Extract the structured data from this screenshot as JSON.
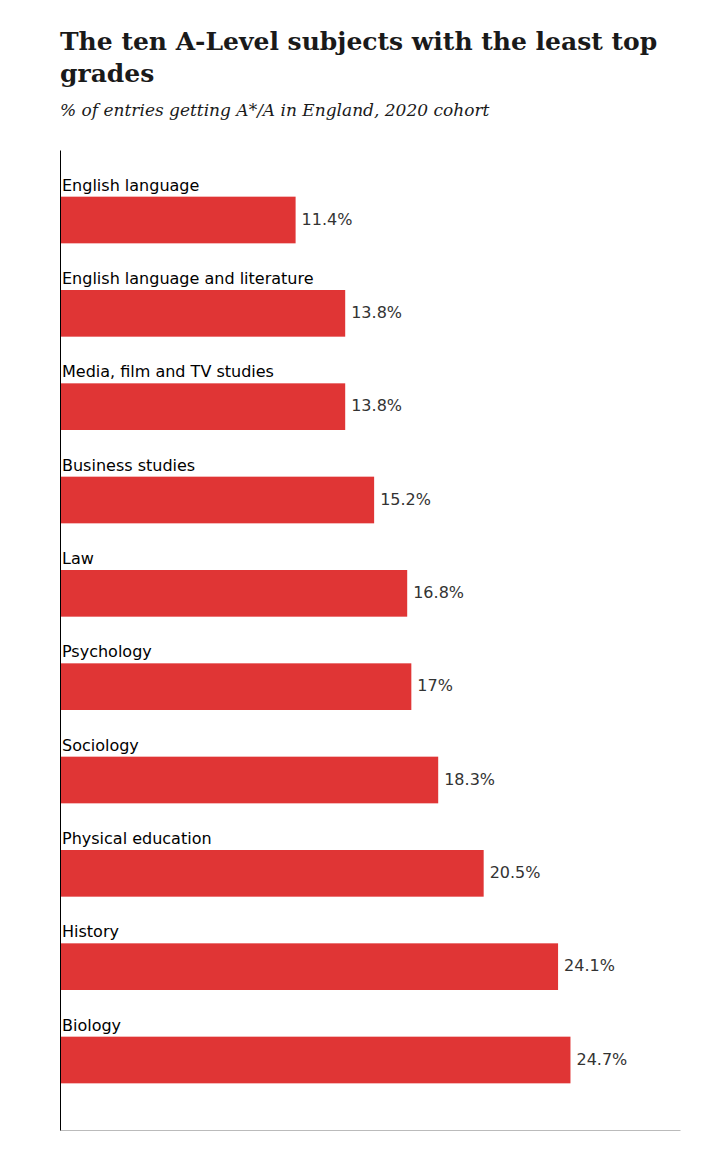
{
  "chart_data": {
    "type": "bar",
    "orientation": "horizontal",
    "title": "The ten A-Level subjects with the least top grades",
    "subtitle": "% of entries getting A*/A in England, 2020 cohort",
    "categories": [
      "English language",
      "English language and literature",
      "Media, film and TV studies",
      "Business studies",
      "Law",
      "Psychology",
      "Sociology",
      "Physical education",
      "History",
      "Biology"
    ],
    "values": [
      11.4,
      13.8,
      13.8,
      15.2,
      16.8,
      17.0,
      18.3,
      20.5,
      24.1,
      24.7
    ],
    "value_labels": [
      "11.4%",
      "13.8%",
      "13.8%",
      "15.2%",
      "16.8%",
      "17%",
      "18.3%",
      "20.5%",
      "24.1%",
      "24.7%"
    ],
    "data_labels": true,
    "color": "#e03535",
    "xlim": [
      0,
      30
    ],
    "grid": false,
    "tick_labels": "y"
  }
}
